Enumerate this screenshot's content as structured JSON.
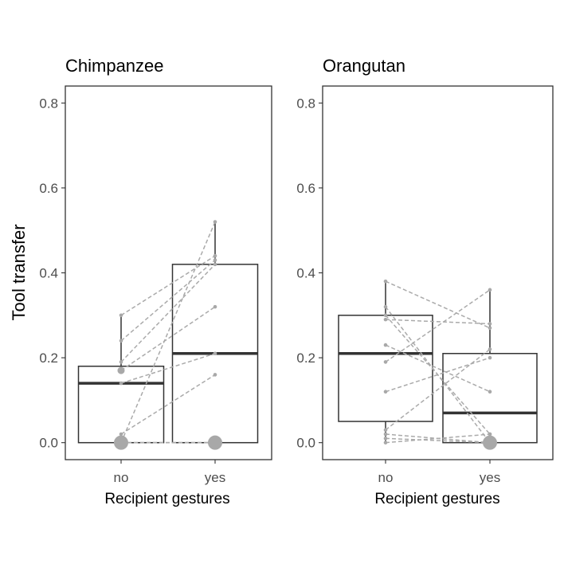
{
  "ylabel": "Tool transfer",
  "colors": {
    "box": "#333333",
    "points": "#a8a8a8",
    "lines": "#aaaaaa",
    "axis_text": "#4d4d4d",
    "text": "#000000"
  },
  "chart_data": [
    {
      "type": "boxplot",
      "title": "Chimpanzee",
      "xlabel": "Recipient gestures",
      "ylabel": "Tool transfer",
      "categories": [
        "no",
        "yes"
      ],
      "ylim": [
        -0.04,
        0.84
      ],
      "yticks": [
        "0.0",
        "0.2",
        "0.4",
        "0.6",
        "0.8"
      ],
      "boxes": [
        {
          "category": "no",
          "lower_whisker": 0.0,
          "q1": 0.0,
          "median": 0.14,
          "q3": 0.18,
          "upper_whisker": 0.3
        },
        {
          "category": "yes",
          "lower_whisker": 0.0,
          "q1": 0.0,
          "median": 0.21,
          "q3": 0.42,
          "upper_whisker": 0.52
        }
      ],
      "paired": [
        [
          0.3,
          0.44
        ],
        [
          0.24,
          0.43
        ],
        [
          0.19,
          0.42
        ],
        [
          0.17,
          0.32
        ],
        [
          0.14,
          0.21
        ],
        [
          0.02,
          0.16
        ],
        [
          0.0,
          0.52
        ],
        [
          0.0,
          0.0
        ],
        [
          0.0,
          0.0
        ]
      ],
      "outliers": [
        {
          "category": "no",
          "value": 0.17
        }
      ],
      "overlap_markers": [
        {
          "category": "no",
          "value": 0.0
        },
        {
          "category": "yes",
          "value": 0.0
        }
      ],
      "grid": false
    },
    {
      "type": "boxplot",
      "title": "Orangutan",
      "xlabel": "Recipient gestures",
      "ylabel": "",
      "categories": [
        "no",
        "yes"
      ],
      "ylim": [
        -0.04,
        0.84
      ],
      "yticks": [
        "0.0",
        "0.2",
        "0.4",
        "0.6",
        "0.8"
      ],
      "boxes": [
        {
          "category": "no",
          "lower_whisker": 0.0,
          "q1": 0.05,
          "median": 0.21,
          "q3": 0.3,
          "upper_whisker": 0.38
        },
        {
          "category": "yes",
          "lower_whisker": 0.0,
          "q1": 0.0,
          "median": 0.07,
          "q3": 0.21,
          "upper_whisker": 0.36
        }
      ],
      "paired": [
        [
          0.38,
          0.27
        ],
        [
          0.32,
          0.0
        ],
        [
          0.3,
          0.02
        ],
        [
          0.29,
          0.28
        ],
        [
          0.23,
          0.12
        ],
        [
          0.19,
          0.36
        ],
        [
          0.12,
          0.2
        ],
        [
          0.03,
          0.22
        ],
        [
          0.02,
          0.0
        ],
        [
          0.01,
          0.0
        ],
        [
          0.0,
          0.02
        ]
      ],
      "outliers": [],
      "overlap_markers": [
        {
          "category": "yes",
          "value": 0.0
        }
      ],
      "grid": false
    }
  ]
}
